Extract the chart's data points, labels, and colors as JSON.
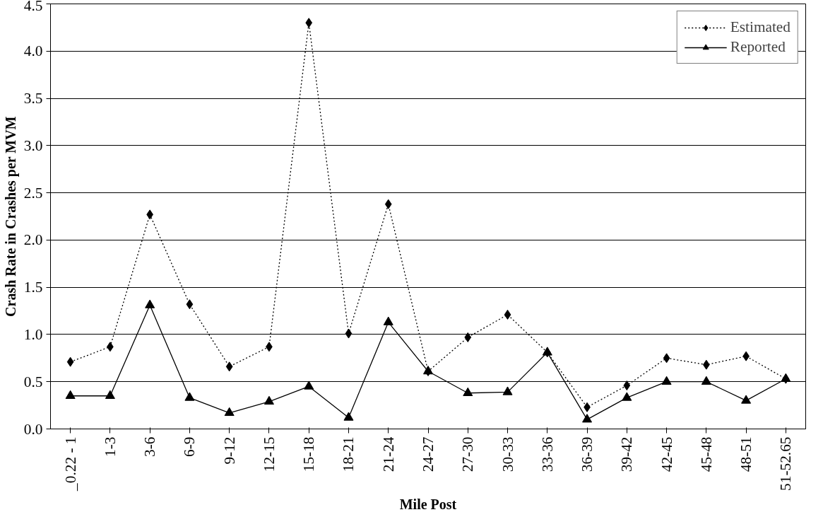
{
  "chart_data": {
    "type": "line",
    "xlabel": "Mile Post",
    "ylabel": "Crash Rate in Crashes per MVM",
    "categories": [
      "_0.22 - 1",
      "1-3",
      "3-6",
      "6-9",
      "9-12",
      "12-15",
      "15-18",
      "18-21",
      "21-24",
      "24-27",
      "27-30",
      "30-33",
      "33-36",
      "36-39",
      "39-42",
      "42-45",
      "45-48",
      "48-51",
      "51-52.65"
    ],
    "series": [
      {
        "name": "Estimated",
        "color": "#000000",
        "marker": "diamond",
        "line_style": "dotted",
        "values": [
          0.71,
          0.87,
          2.27,
          1.32,
          0.66,
          0.87,
          4.3,
          1.01,
          2.38,
          0.61,
          0.97,
          1.21,
          0.81,
          0.23,
          0.46,
          0.75,
          0.68,
          0.77,
          0.53
        ]
      },
      {
        "name": "Reported",
        "color": "#000000",
        "marker": "triangle",
        "line_style": "solid",
        "values": [
          0.35,
          0.35,
          1.31,
          0.33,
          0.17,
          0.29,
          0.45,
          0.12,
          1.13,
          0.61,
          0.38,
          0.39,
          0.81,
          0.1,
          0.33,
          0.5,
          0.5,
          0.3,
          0.53
        ]
      }
    ],
    "ylim": [
      0,
      4.5
    ],
    "yticks": [
      {
        "value": 0,
        "label": "0.0"
      },
      0.5,
      {
        "value": 1,
        "label": "1.0"
      },
      1.5,
      {
        "value": 2,
        "label": "2.0"
      },
      2.5,
      {
        "value": 3,
        "label": "3.0"
      },
      3.5,
      {
        "value": 4,
        "label": "4.0"
      },
      4.5
    ],
    "grid": "y",
    "legend": "top right"
  }
}
